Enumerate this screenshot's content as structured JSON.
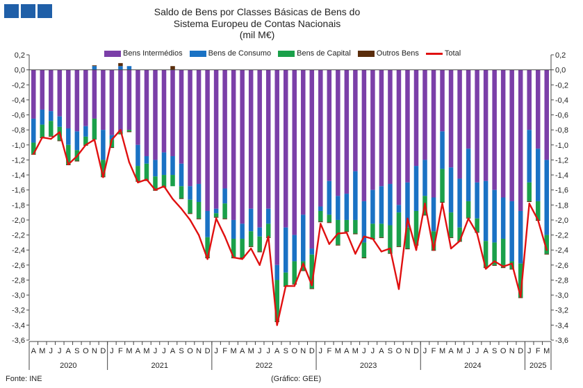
{
  "source": "Fonte: INE",
  "credit": "(Gráfico: GEE)",
  "colors": {
    "intermedios": "#7b3fa8",
    "consumo": "#1a72c4",
    "capital": "#1aa04a",
    "outros": "#5a2d0c",
    "total": "#e01010"
  },
  "chart_data": {
    "type": "bar",
    "stacked": true,
    "title": [
      "Saldo de Bens por Classes Básicas de Bens do",
      "Sistema Europeu de Contas Nacionais",
      "(mil M€)"
    ],
    "ylim": [
      -3.6,
      0.2
    ],
    "yticks": [
      "0,2",
      "0,0",
      "-0,2",
      "-0,4",
      "-0,6",
      "-0,8",
      "-1,0",
      "-1,2",
      "-1,4",
      "-1,6",
      "-1,8",
      "-2,0",
      "-2,2",
      "-2,4",
      "-2,6",
      "-2,8",
      "-3,0",
      "-3,2",
      "-3,4",
      "-3,6"
    ],
    "legend_position": "top",
    "categories": [
      "2020-04",
      "2020-05",
      "2020-06",
      "2020-07",
      "2020-08",
      "2020-09",
      "2020-10",
      "2020-11",
      "2020-12",
      "2021-01",
      "2021-02",
      "2021-03",
      "2021-04",
      "2021-05",
      "2021-06",
      "2021-07",
      "2021-08",
      "2021-09",
      "2021-10",
      "2021-11",
      "2021-12",
      "2022-01",
      "2022-02",
      "2022-03",
      "2022-04",
      "2022-05",
      "2022-06",
      "2022-07",
      "2022-08",
      "2022-09",
      "2022-10",
      "2022-11",
      "2022-12",
      "2023-01",
      "2023-02",
      "2023-03",
      "2023-04",
      "2023-05",
      "2023-06",
      "2023-07",
      "2023-08",
      "2023-09",
      "2023-10",
      "2023-11",
      "2023-12",
      "2024-01",
      "2024-02",
      "2024-03",
      "2024-04",
      "2024-05",
      "2024-06",
      "2024-07",
      "2024-08",
      "2024-09",
      "2024-10",
      "2024-11",
      "2024-12",
      "2025-01",
      "2025-02",
      "2025-03"
    ],
    "month_labels": [
      "A",
      "M",
      "J",
      "J",
      "A",
      "S",
      "O",
      "N",
      "D",
      "J",
      "F",
      "M",
      "A",
      "M",
      "J",
      "J",
      "A",
      "S",
      "O",
      "N",
      "D",
      "J",
      "F",
      "M",
      "A",
      "M",
      "J",
      "J",
      "A",
      "S",
      "O",
      "N",
      "D",
      "J",
      "F",
      "M",
      "A",
      "M",
      "J",
      "J",
      "A",
      "S",
      "O",
      "N",
      "D",
      "J",
      "F",
      "M",
      "A",
      "M",
      "J",
      "J",
      "A",
      "S",
      "O",
      "N",
      "D",
      "J",
      "F",
      "M"
    ],
    "year_groups": [
      {
        "label": "2020",
        "start": 0,
        "end": 8
      },
      {
        "label": "2021",
        "start": 9,
        "end": 20
      },
      {
        "label": "2022",
        "start": 21,
        "end": 32
      },
      {
        "label": "2023",
        "start": 33,
        "end": 44
      },
      {
        "label": "2024",
        "start": 45,
        "end": 56
      },
      {
        "label": "2025",
        "start": 57,
        "end": 59
      }
    ],
    "series": [
      {
        "name": "Bens Intermédios",
        "key": "intermedios",
        "values": [
          -0.65,
          -0.53,
          -0.55,
          -0.62,
          -0.78,
          -0.82,
          -0.75,
          -0.65,
          -0.8,
          -0.87,
          -0.82,
          -0.8,
          -1.0,
          -1.15,
          -1.2,
          -1.1,
          -1.15,
          -1.25,
          -1.55,
          -1.52,
          -1.88,
          -1.85,
          -1.58,
          -2.0,
          -2.05,
          -1.85,
          -2.1,
          -1.85,
          -2.6,
          -2.1,
          -2.2,
          -1.93,
          -2.38,
          -1.82,
          -1.48,
          -1.68,
          -1.65,
          -1.35,
          -1.75,
          -1.6,
          -1.55,
          -1.52,
          -1.8,
          -1.5,
          -1.28,
          -1.2,
          -1.7,
          -0.82,
          -1.3,
          -1.45,
          -1.05,
          -1.5,
          -1.48,
          -1.6,
          -1.7,
          -1.75,
          -1.88,
          -0.8,
          -1.05,
          -1.2
        ]
      },
      {
        "name": "Bens de Consumo",
        "key": "consumo",
        "values": [
          -0.32,
          -0.2,
          -0.13,
          -0.14,
          -0.22,
          -0.25,
          -0.14,
          0.05,
          -0.4,
          -0.06,
          0.05,
          0.05,
          -0.28,
          -0.1,
          -0.22,
          -0.3,
          -0.25,
          -0.3,
          -0.18,
          -0.24,
          -0.35,
          -0.06,
          -0.2,
          -0.25,
          -0.2,
          -0.3,
          -0.12,
          -0.2,
          -0.2,
          -0.6,
          -0.35,
          -0.62,
          -0.08,
          -0.06,
          -0.45,
          -0.32,
          -0.35,
          -0.65,
          -0.55,
          -0.45,
          -0.5,
          -0.55,
          -0.1,
          -0.6,
          -0.6,
          -0.48,
          -0.45,
          -0.5,
          -0.6,
          -0.65,
          -0.7,
          -0.48,
          -0.8,
          -0.7,
          -0.55,
          -0.8,
          -0.7,
          -0.7,
          -0.7,
          -1.0
        ]
      },
      {
        "name": "Bens de Capital",
        "key": "capital",
        "values": [
          -0.15,
          -0.17,
          -0.2,
          -0.18,
          -0.26,
          -0.14,
          -0.11,
          -0.28,
          -0.22,
          -0.1,
          -0.04,
          -0.02,
          -0.2,
          -0.22,
          -0.18,
          -0.16,
          -0.15,
          -0.16,
          -0.18,
          -0.22,
          -0.27,
          -0.05,
          -0.2,
          -0.25,
          -0.25,
          -0.2,
          -0.2,
          -0.18,
          -0.55,
          -0.18,
          -0.3,
          -0.12,
          -0.45,
          -0.14,
          -0.1,
          -0.33,
          -0.15,
          -0.18,
          -0.2,
          -0.2,
          -0.18,
          -0.37,
          -0.45,
          -0.28,
          -0.45,
          -0.25,
          -0.25,
          -0.44,
          -0.33,
          -0.18,
          -0.22,
          -0.18,
          -0.35,
          -0.3,
          -0.38,
          -0.1,
          -0.45,
          -0.25,
          -0.25,
          -0.25
        ]
      },
      {
        "name": "Outros Bens",
        "key": "outros",
        "values": [
          -0.01,
          -0.01,
          -0.01,
          -0.01,
          -0.01,
          -0.01,
          -0.01,
          0.01,
          -0.01,
          -0.01,
          0.04,
          -0.01,
          -0.01,
          -0.01,
          -0.01,
          -0.01,
          0.05,
          -0.01,
          -0.01,
          -0.01,
          -0.01,
          -0.01,
          -0.01,
          -0.01,
          -0.01,
          -0.01,
          -0.01,
          -0.01,
          -0.01,
          -0.01,
          -0.01,
          -0.01,
          -0.01,
          -0.01,
          -0.01,
          -0.01,
          -0.01,
          -0.01,
          -0.01,
          -0.01,
          -0.01,
          -0.01,
          -0.01,
          -0.01,
          -0.01,
          -0.01,
          -0.01,
          -0.01,
          -0.01,
          -0.01,
          -0.01,
          -0.01,
          -0.01,
          -0.01,
          -0.01,
          -0.01,
          -0.01,
          -0.01,
          -0.01,
          -0.01
        ]
      },
      {
        "name": "Total",
        "key": "total",
        "type": "line",
        "values": [
          -1.12,
          -0.9,
          -0.92,
          -0.83,
          -1.26,
          -1.15,
          -1.0,
          -0.93,
          -1.43,
          -0.93,
          -0.8,
          -1.23,
          -1.5,
          -1.46,
          -1.6,
          -1.55,
          -1.72,
          -1.85,
          -2.0,
          -2.2,
          -2.52,
          -1.98,
          -2.22,
          -2.5,
          -2.52,
          -2.38,
          -2.6,
          -2.22,
          -3.4,
          -2.88,
          -2.88,
          -2.58,
          -2.87,
          -2.05,
          -2.32,
          -2.18,
          -2.17,
          -2.45,
          -2.22,
          -2.25,
          -2.42,
          -2.38,
          -2.92,
          -1.98,
          -2.4,
          -1.78,
          -2.4,
          -1.78,
          -2.38,
          -2.28,
          -1.98,
          -2.18,
          -2.65,
          -2.55,
          -2.62,
          -2.58,
          -3.02,
          -1.78,
          -2.0,
          -2.4
        ]
      }
    ]
  }
}
